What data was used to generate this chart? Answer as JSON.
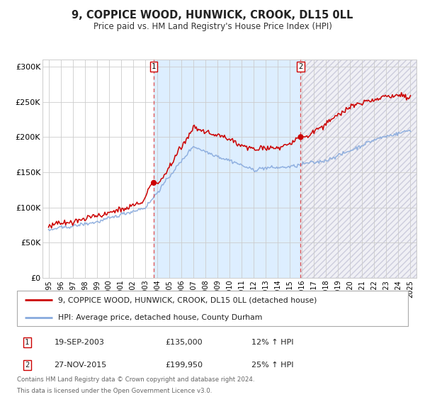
{
  "title": "9, COPPICE WOOD, HUNWICK, CROOK, DL15 0LL",
  "subtitle": "Price paid vs. HM Land Registry's House Price Index (HPI)",
  "xmin_year": 1994.5,
  "xmax_year": 2025.5,
  "ymin": 0,
  "ymax": 310000,
  "yticks": [
    0,
    50000,
    100000,
    150000,
    200000,
    250000,
    300000
  ],
  "ytick_labels": [
    "£0",
    "£50K",
    "£100K",
    "£150K",
    "£200K",
    "£250K",
    "£300K"
  ],
  "xtick_years": [
    1995,
    1996,
    1997,
    1998,
    1999,
    2000,
    2001,
    2002,
    2003,
    2004,
    2005,
    2006,
    2007,
    2008,
    2009,
    2010,
    2011,
    2012,
    2013,
    2014,
    2015,
    2016,
    2017,
    2018,
    2019,
    2020,
    2021,
    2022,
    2023,
    2024,
    2025
  ],
  "sale1_year": 2003.72,
  "sale1_price": 135000,
  "sale1_label": "1",
  "sale1_date": "19-SEP-2003",
  "sale1_price_str": "£135,000",
  "sale1_hpi": "12% ↑ HPI",
  "sale2_year": 2015.9,
  "sale2_price": 199950,
  "sale2_label": "2",
  "sale2_date": "27-NOV-2015",
  "sale2_price_str": "£199,950",
  "sale2_hpi": "25% ↑ HPI",
  "legend_property": "9, COPPICE WOOD, HUNWICK, CROOK, DL15 0LL (detached house)",
  "legend_hpi": "HPI: Average price, detached house, County Durham",
  "footnote1": "Contains HM Land Registry data © Crown copyright and database right 2024.",
  "footnote2": "This data is licensed under the Open Government Licence v3.0.",
  "line_property_color": "#cc0000",
  "line_hpi_color": "#88aadd",
  "bg_ownership_color": "#ddeeff",
  "bg_hatch_facecolor": "#eeeeee",
  "sale_dot_color": "#cc0000",
  "vline_color": "#dd3333",
  "grid_color": "#cccccc",
  "background_color": "#ffffff",
  "rand_seed": 42
}
